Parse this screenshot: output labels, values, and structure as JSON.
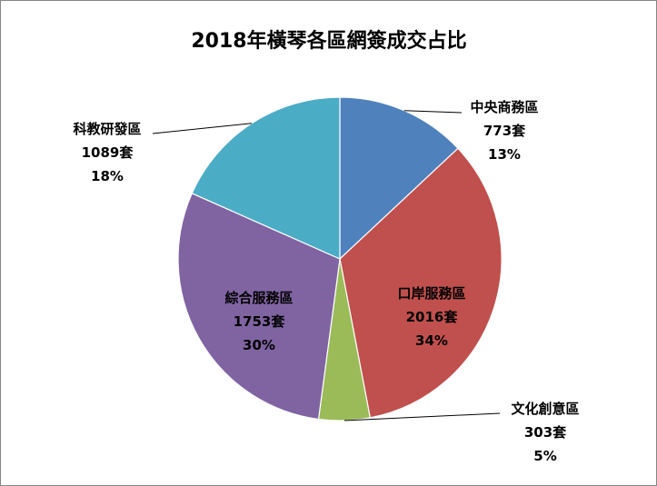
{
  "chart_data": {
    "type": "pie",
    "title": "2018年橫琴各區網簽成交占比",
    "unit": "套",
    "start_angle_deg": 0,
    "direction": "clockwise",
    "slices": [
      {
        "name": "中央商務區",
        "value": 773,
        "value_label": "773套",
        "percent_label": "13%",
        "color": "#4F81BD"
      },
      {
        "name": "口岸服務區",
        "value": 2016,
        "value_label": "2016套",
        "percent_label": "34%",
        "color": "#C0504D"
      },
      {
        "name": "文化創意區",
        "value": 303,
        "value_label": "303套",
        "percent_label": "5%",
        "color": "#9BBB59"
      },
      {
        "name": "綜合服務區",
        "value": 1753,
        "value_label": "1753套",
        "percent_label": "30%",
        "color": "#8064A2"
      },
      {
        "name": "科教研發區",
        "value": 1089,
        "value_label": "1089套",
        "percent_label": "18%",
        "color": "#4BACC6"
      }
    ]
  }
}
